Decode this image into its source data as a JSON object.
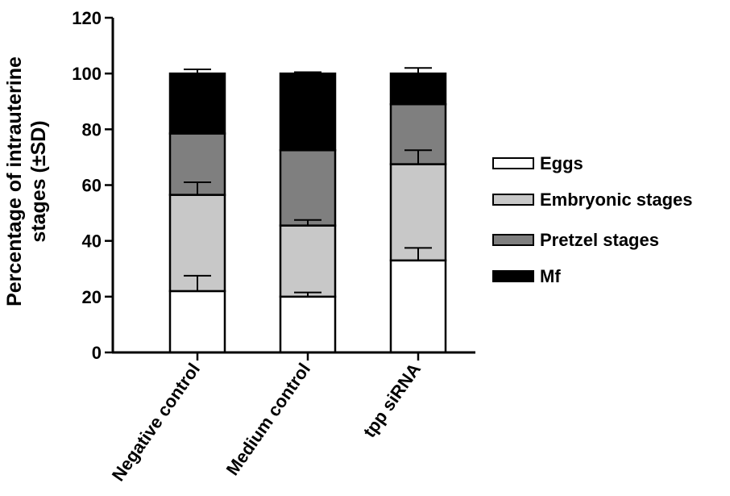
{
  "chart_data": {
    "type": "bar",
    "stacked": true,
    "title": "",
    "xlabel": "",
    "ylabel_lines": [
      "Percentage of intrauterine",
      "stages (±SD)"
    ],
    "ylim": [
      0,
      120
    ],
    "yticks": [
      0,
      20,
      40,
      60,
      80,
      100,
      120
    ],
    "categories": [
      "Negative control",
      "Medium control",
      "tpp siRNA"
    ],
    "series": [
      {
        "name": "Eggs",
        "color": "#ffffff",
        "values": [
          22,
          20,
          33
        ],
        "error": [
          5.5,
          1.5,
          4.5
        ]
      },
      {
        "name": "Embryonic stages",
        "color": "#c8c8c8",
        "values": [
          34.5,
          25.5,
          34.5
        ],
        "error": [
          4.5,
          2.0,
          5.0
        ]
      },
      {
        "name": "Pretzel stages",
        "color": "#7f7f7f",
        "values": [
          22,
          27,
          21.5
        ],
        "error": [
          0,
          0,
          0
        ]
      },
      {
        "name": "Mf",
        "color": "#000000",
        "values": [
          21.5,
          27.5,
          11
        ],
        "error": [
          1.5,
          0.5,
          2.0
        ]
      }
    ],
    "legend_position": "right",
    "grid": false
  }
}
